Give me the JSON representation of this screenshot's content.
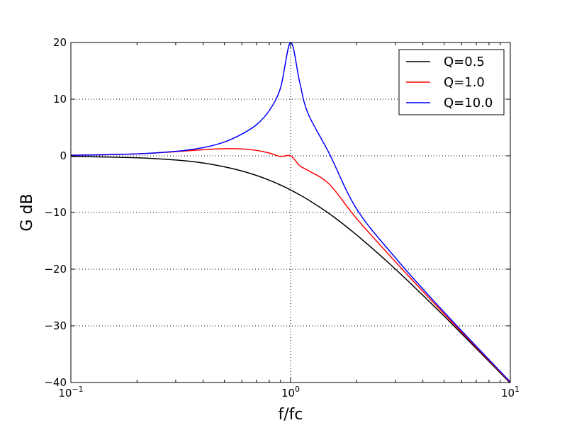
{
  "chart_data": {
    "type": "line",
    "title": "",
    "xlabel": "f/fc",
    "ylabel": "G dB",
    "xscale": "log",
    "xlim": [
      0.1,
      10
    ],
    "ylim": [
      -40,
      20
    ],
    "grid": true,
    "legend_position": "top-right",
    "x_ticks": [
      0.1,
      1,
      10
    ],
    "x_tick_labels": [
      {
        "base": "10",
        "exp": "−1"
      },
      {
        "base": "10",
        "exp": "0"
      },
      {
        "base": "10",
        "exp": "1"
      }
    ],
    "y_ticks": [
      20,
      10,
      0,
      -10,
      -20,
      -30,
      -40
    ],
    "y_tick_labels": [
      "20",
      "10",
      "0",
      "−10",
      "−20",
      "−30",
      "−40"
    ],
    "x": [
      0.1,
      0.2,
      0.3,
      0.4,
      0.5,
      0.6,
      0.7,
      0.8,
      0.9,
      1.0,
      1.1,
      1.2,
      1.5,
      2,
      3,
      5,
      10
    ],
    "series": [
      {
        "name": "Q=0.5",
        "color": "#000000",
        "values": [
          -0.09,
          -0.34,
          -0.74,
          -1.26,
          -1.94,
          -2.67,
          -3.47,
          -4.3,
          -5.15,
          -6.02,
          -6.89,
          -7.74,
          -10.2,
          -13.98,
          -20.0,
          -28.3,
          -40.1
        ]
      },
      {
        "name": "Q=1.0",
        "color": "#ff0000",
        "values": [
          0.09,
          0.34,
          0.74,
          1.08,
          1.26,
          1.22,
          0.96,
          0.5,
          -0.11,
          0.0,
          -1.74,
          -2.58,
          -5.0,
          -11.1,
          -18.7,
          -27.9,
          -40.0
        ]
      },
      {
        "name": "Q=10.0",
        "color": "#0000ff",
        "values": [
          0.09,
          0.35,
          0.79,
          1.45,
          2.45,
          3.84,
          5.5,
          8.0,
          12.0,
          20.0,
          13.0,
          7.5,
          0.4,
          -9.4,
          -18.0,
          -27.6,
          -39.9
        ]
      }
    ]
  }
}
